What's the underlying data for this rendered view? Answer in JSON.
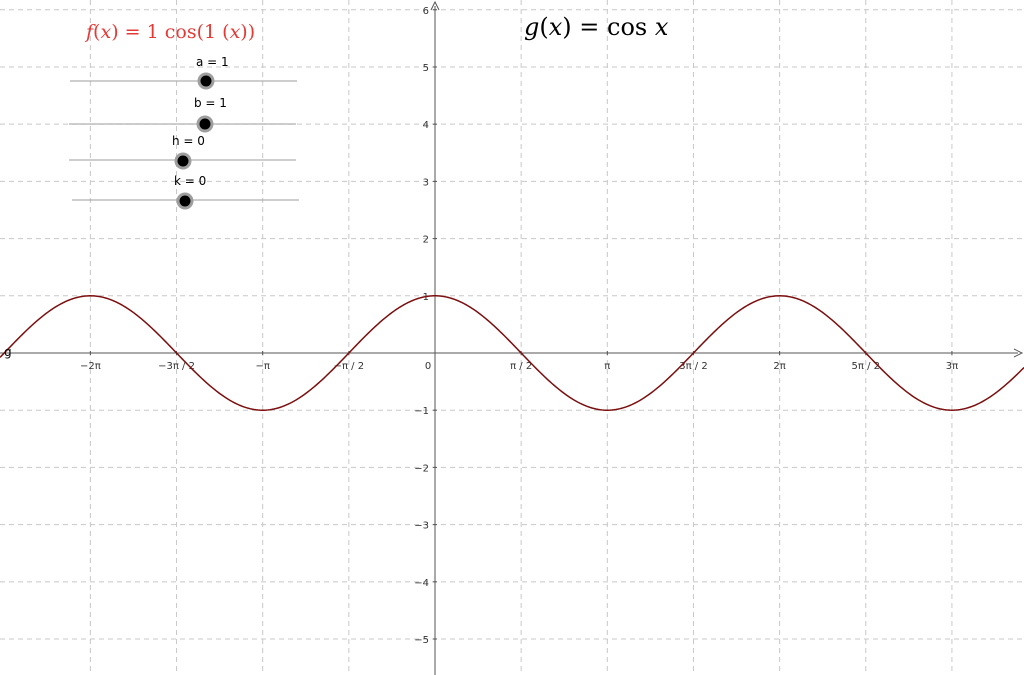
{
  "formulas": {
    "f": {
      "name": "f",
      "var": "x",
      "a": "1",
      "fn": "cos",
      "b": "1"
    },
    "g": {
      "name": "g",
      "var": "x",
      "fn": "cos"
    }
  },
  "sliders": [
    {
      "name": "a",
      "value": 1,
      "label": "a = 1"
    },
    {
      "name": "b",
      "value": 1,
      "label": "b = 1"
    },
    {
      "name": "h",
      "value": 0,
      "label": "h = 0"
    },
    {
      "name": "k",
      "value": 0,
      "label": "k = 0"
    }
  ],
  "colors": {
    "f_text": "#e53935",
    "curve": "#7b0e0e",
    "grid": "#c8c8c8",
    "axis": "#555555",
    "slider_track": "#9e9e9e",
    "slider_knob": "#000000",
    "slider_halo": "#9e9e9e"
  },
  "chart_data": {
    "type": "line",
    "title": "",
    "xlabel": "",
    "ylabel": "",
    "xlim": [
      -7.85,
      10.82
    ],
    "ylim": [
      -5.6,
      6.2
    ],
    "grid": true,
    "x_ticks": [
      {
        "value": -6.2832,
        "label": "−2π"
      },
      {
        "value": -4.7124,
        "label": "−3π / 2"
      },
      {
        "value": -3.1416,
        "label": "−π"
      },
      {
        "value": -1.5708,
        "label": "−π / 2"
      },
      {
        "value": 0,
        "label": "0"
      },
      {
        "value": 1.5708,
        "label": "π / 2"
      },
      {
        "value": 3.1416,
        "label": "π"
      },
      {
        "value": 4.7124,
        "label": "3π / 2"
      },
      {
        "value": 6.2832,
        "label": "2π"
      },
      {
        "value": 7.854,
        "label": "5π / 2"
      },
      {
        "value": 9.4248,
        "label": "3π"
      }
    ],
    "y_ticks": [
      {
        "value": 6,
        "label": "6"
      },
      {
        "value": 5,
        "label": "5"
      },
      {
        "value": 4,
        "label": "4"
      },
      {
        "value": 3,
        "label": "3"
      },
      {
        "value": 2,
        "label": "2"
      },
      {
        "value": 1,
        "label": "1"
      },
      {
        "value": -1,
        "label": "−1"
      },
      {
        "value": -2,
        "label": "−2"
      },
      {
        "value": -3,
        "label": "−3"
      },
      {
        "value": -4,
        "label": "−4"
      },
      {
        "value": -5,
        "label": "−5"
      }
    ],
    "series": [
      {
        "name": "g",
        "expression": "cos(x)",
        "color": "#7b0e0e"
      }
    ]
  }
}
